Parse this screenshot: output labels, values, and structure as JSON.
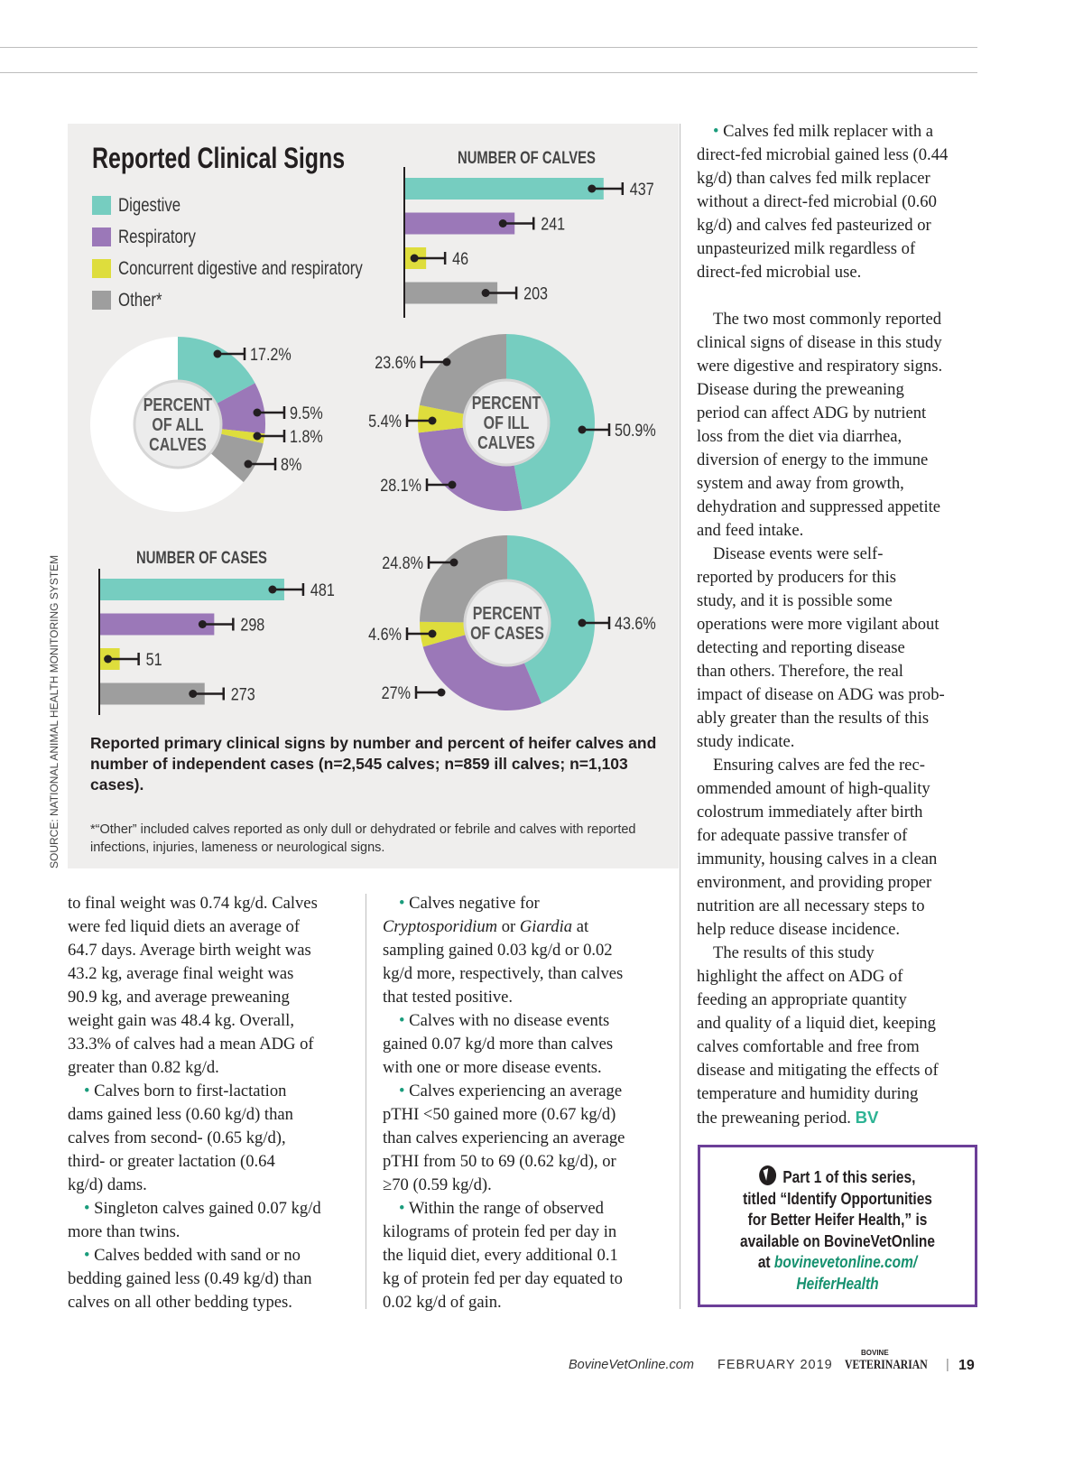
{
  "colors": {
    "digestive": "#76cdc0",
    "respiratory": "#9b78b8",
    "concurrent": "#dedd3c",
    "other": "#9e9e9e",
    "remainder": "#ffffff",
    "border": "#6c3f98",
    "link": "#16916f"
  },
  "infographic": {
    "title": "Reported Clinical Signs",
    "legend": [
      "Digestive",
      "Respiratory",
      "Concurrent digestive and respiratory",
      "Other*"
    ],
    "caption": "Reported primary clinical signs by number and percent of heifer calves and number of independent cases (n=2,545 calves; n=859 ill calves; n=1,103 cases).",
    "footnote": "*“Other” included calves reported as only dull or dehydrated or febrile and calves with reported infections, injuries, lameness or neurological signs.",
    "source": "SOURCE: NATIONAL ANIMAL HEALTH MONITORING SYSTEM"
  },
  "chart_data": [
    {
      "type": "bar",
      "title": "NUMBER OF CALVES",
      "orientation": "horizontal",
      "categories": [
        "Digestive",
        "Respiratory",
        "Concurrent digestive and respiratory",
        "Other*"
      ],
      "values": [
        437,
        241,
        46,
        203
      ],
      "labels": [
        "437",
        "241",
        "46",
        "203"
      ]
    },
    {
      "type": "pie",
      "title": "PERCENT OF ALL CALVES",
      "donut": true,
      "categories": [
        "Digestive",
        "Respiratory",
        "Concurrent digestive and respiratory",
        "Other*"
      ],
      "values": [
        17.2,
        9.5,
        1.8,
        8
      ],
      "labels": [
        "17.2%",
        "9.5%",
        "1.8%",
        "8%"
      ]
    },
    {
      "type": "pie",
      "title": "PERCENT OF ILL CALVES",
      "donut": true,
      "categories": [
        "Digestive",
        "Respiratory",
        "Concurrent digestive and respiratory",
        "Other*"
      ],
      "values": [
        50.9,
        28.1,
        5.4,
        23.6
      ],
      "labels": [
        "50.9%",
        "28.1%",
        "5.4%",
        "23.6%"
      ]
    },
    {
      "type": "bar",
      "title": "NUMBER OF CASES",
      "orientation": "horizontal",
      "categories": [
        "Digestive",
        "Respiratory",
        "Concurrent digestive and respiratory",
        "Other*"
      ],
      "values": [
        481,
        298,
        51,
        273
      ],
      "labels": [
        "481",
        "298",
        "51",
        "273"
      ]
    },
    {
      "type": "pie",
      "title": "PERCENT OF CASES",
      "donut": true,
      "categories": [
        "Digestive",
        "Respiratory",
        "Concurrent digestive and respiratory",
        "Other*"
      ],
      "values": [
        43.6,
        27,
        4.6,
        24.8
      ],
      "labels": [
        "43.6%",
        "27%",
        "4.6%",
        "24.8%"
      ]
    }
  ],
  "donut_center_lines": [
    [
      "PERCENT",
      "OF ALL",
      "CALVES"
    ],
    [
      "PERCENT",
      "OF ILL",
      "CALVES"
    ],
    [
      "PERCENT",
      "OF CASES"
    ]
  ],
  "columns": {
    "col1": [
      [
        {
          "t": "to final weight was 0.74 kg/d. Calves"
        },
        {
          "t": "were fed liquid diets an average of"
        },
        {
          "t": "64.7 days. Average birth weight was"
        },
        {
          "t": "43.2 kg, average final weight was"
        },
        {
          "t": "90.9 kg, and average preweaning"
        },
        {
          "t": "weight gain was 48.4 kg. Overall,"
        },
        {
          "t": "33.3% of calves had a mean ADG of"
        },
        {
          "t": "greater than 0.82 kg/d."
        }
      ],
      [
        {
          "b": true,
          "t": "Calves born to first-lactation"
        },
        {
          "t": "dams gained less (0.60 kg/d) than"
        },
        {
          "t": "calves from second- (0.65 kg/d),"
        },
        {
          "t": "third- or greater lactation (0.64"
        },
        {
          "t": "kg/d) dams."
        }
      ],
      [
        {
          "b": true,
          "t": "Singleton calves gained 0.07 kg/d"
        },
        {
          "t": "more than twins."
        }
      ],
      [
        {
          "b": true,
          "t": "Calves bedded with sand or no"
        },
        {
          "t": "bedding gained less (0.49 kg/d) than"
        },
        {
          "t": "calves on all other bedding types."
        }
      ]
    ],
    "col2": [
      [
        {
          "b": true,
          "t": "Calves negative for"
        },
        {
          "i": "Cryptosporidium",
          "t": " or ",
          "i2": "Giardia",
          "t2": " at"
        },
        {
          "t": "sampling gained 0.03 kg/d or 0.02"
        },
        {
          "t": "kg/d more, respectively, than calves"
        },
        {
          "t": "that tested positive."
        }
      ],
      [
        {
          "b": true,
          "t": "Calves with no disease events"
        },
        {
          "t": "gained 0.07 kg/d more than calves"
        },
        {
          "t": "with one or more disease events."
        }
      ],
      [
        {
          "b": true,
          "t": "Calves experiencing an average"
        },
        {
          "t": "pTHI <50 gained more (0.67 kg/d)"
        },
        {
          "t": "than calves experiencing an average"
        },
        {
          "t": "pTHI from 50 to 69 (0.62 kg/d), or"
        },
        {
          "t": "≥70 (0.59 kg/d)."
        }
      ],
      [
        {
          "b": true,
          "t": "Within the range of observed"
        },
        {
          "t": "kilograms of protein fed per day in"
        },
        {
          "t": "the liquid diet, every additional 0.1"
        },
        {
          "t": "kg of protein fed per day equated to"
        },
        {
          "t": "0.02 kg/d of gain."
        }
      ]
    ],
    "col3": [
      [
        {
          "b": true,
          "t": "Calves fed milk replacer with a"
        },
        {
          "t": "direct-fed microbial gained less (0.44"
        },
        {
          "t": "kg/d) than calves fed milk replacer"
        },
        {
          "t": "without a direct-fed microbial (0.60"
        },
        {
          "t": "kg/d) and calves fed pasteurized or"
        },
        {
          "t": "unpasteurized milk regardless of"
        },
        {
          "t": "direct-fed microbial use."
        },
        {
          "t": ""
        }
      ],
      [
        {
          "p": true,
          "t": "The two most commonly reported"
        },
        {
          "t": "clinical signs of disease in this study"
        },
        {
          "t": "were digestive and respiratory signs."
        },
        {
          "t": "Disease during the preweaning"
        },
        {
          "t": "period can affect ADG by nutrient"
        },
        {
          "t": "loss from the diet via diarrhea,"
        },
        {
          "t": "diversion of energy to the immune"
        },
        {
          "t": "system and away from growth,"
        },
        {
          "t": "dehydration and suppressed appetite"
        },
        {
          "t": "and feed intake."
        }
      ],
      [
        {
          "p": true,
          "t": "Disease events were self-"
        },
        {
          "t": "reported by producers for this"
        },
        {
          "t": "study, and it is possible some"
        },
        {
          "t": "operations were more vigilant about"
        },
        {
          "t": "detecting and reporting disease"
        },
        {
          "t": "than others. Therefore, the real"
        },
        {
          "t": "impact of disease on ADG was prob-"
        },
        {
          "t": "ably greater than the results of this"
        },
        {
          "t": "study indicate."
        }
      ],
      [
        {
          "p": true,
          "t": "Ensuring calves are fed the rec-"
        },
        {
          "t": "ommended amount of high-quality"
        },
        {
          "t": "colostrum immediately after birth"
        },
        {
          "t": "for adequate passive transfer of"
        },
        {
          "t": "immunity, housing calves in a clean"
        },
        {
          "t": "environment, and providing proper"
        },
        {
          "t": "nutrition are all necessary steps to"
        },
        {
          "t": "help reduce disease incidence."
        }
      ],
      [
        {
          "p": true,
          "t": "The results of this study"
        },
        {
          "t": "highlight the affect on ADG of"
        },
        {
          "t": "feeding an appropriate quantity"
        },
        {
          "t": "and quality of a liquid diet, keeping"
        },
        {
          "t": "calves comfortable and free from"
        },
        {
          "t": "disease and mitigating the effects of"
        },
        {
          "t": "temperature and humidity during"
        },
        {
          "t": "the preweaning period.",
          "end": "BV"
        }
      ]
    ]
  },
  "callout": {
    "icon": "cursor-icon",
    "lines": [
      "Part 1 of this series,",
      "titled “Identify Opportunities",
      "for Better Heifer Health,” is",
      "available on BovineVetOnline"
    ],
    "at": "at ",
    "link_lines": [
      "bovinevetonline.com/",
      "HeiferHealth"
    ]
  },
  "footer": {
    "site": "BovineVetOnline.com",
    "date": "FEBRUARY 2019",
    "logo_small": "BOVINE",
    "logo": "VETERINARIAN",
    "separator": "|",
    "page": "19"
  }
}
